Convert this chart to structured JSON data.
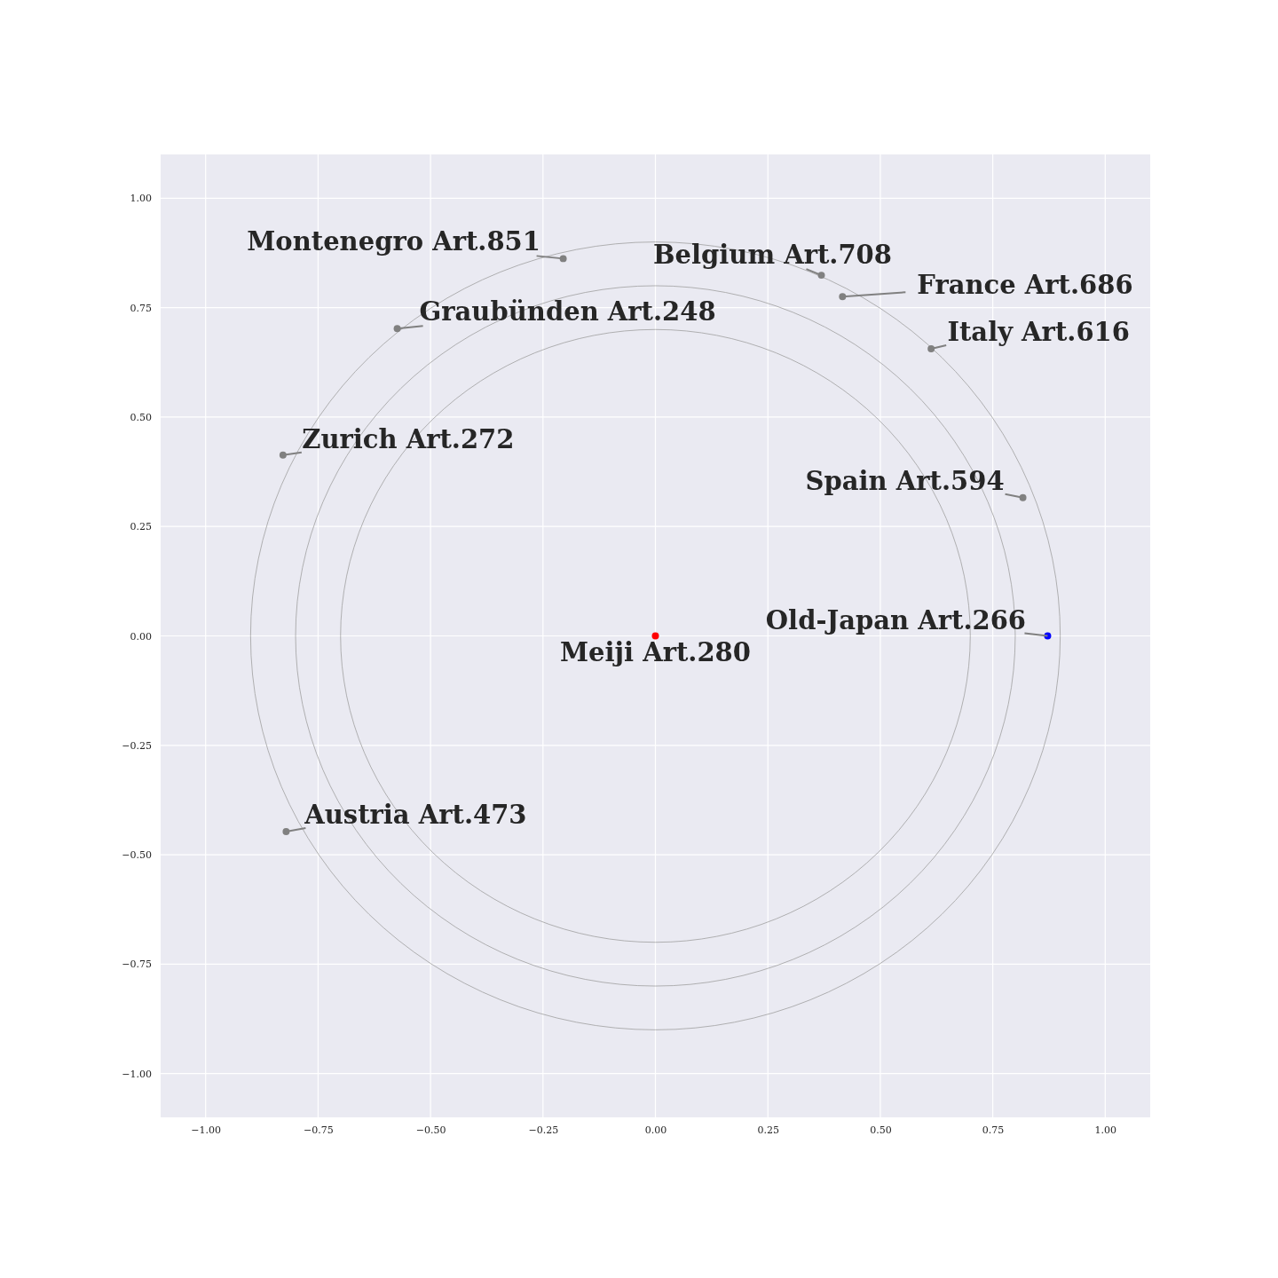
{
  "chart_data": {
    "type": "scatter",
    "xlim": [
      -1.1,
      1.1
    ],
    "ylim": [
      -1.1,
      1.1
    ],
    "xticks": [
      {
        "value": -1,
        "label": "−1.00"
      },
      {
        "value": -0.75,
        "label": "−0.75"
      },
      {
        "value": -0.5,
        "label": "−0.50"
      },
      {
        "value": -0.25,
        "label": "−0.25"
      },
      {
        "value": 0,
        "label": "0.00"
      },
      {
        "value": 0.25,
        "label": "0.25"
      },
      {
        "value": 0.5,
        "label": "0.50"
      },
      {
        "value": 0.75,
        "label": "0.75"
      },
      {
        "value": 1,
        "label": "1.00"
      }
    ],
    "yticks": [
      {
        "value": -1,
        "label": "−1.00"
      },
      {
        "value": -0.75,
        "label": "−0.75"
      },
      {
        "value": -0.5,
        "label": "−0.50"
      },
      {
        "value": -0.25,
        "label": "−0.25"
      },
      {
        "value": 0,
        "label": "0.00"
      },
      {
        "value": 0.25,
        "label": "0.25"
      },
      {
        "value": 0.5,
        "label": "0.50"
      },
      {
        "value": 0.75,
        "label": "0.75"
      },
      {
        "value": 1,
        "label": "1.00"
      }
    ],
    "grid": true,
    "marker": "circle",
    "series": [
      {
        "x": [
          0,
          0.872,
          0.817,
          0.613,
          0.416,
          0.369,
          -0.205,
          -0.574,
          -0.828,
          -0.821
        ],
        "values": [
          0,
          0,
          0.316,
          0.656,
          0.775,
          0.824,
          0.862,
          0.702,
          0.413,
          -0.447
        ],
        "colors": [
          "#ff0000",
          "#0000ff",
          "#808080",
          "#808080",
          "#808080",
          "#808080",
          "#808080",
          "#808080",
          "#808080",
          "#808080"
        ]
      }
    ],
    "annotations": [
      {
        "text": "Meiji Art.280",
        "x": 0,
        "y": 0
      },
      {
        "text": "Old-Japan Art.266",
        "x": 0.872,
        "y": 0
      },
      {
        "text": "Spain Art.594",
        "x": 0.817,
        "y": 0.316
      },
      {
        "text": "Italy Art.616",
        "x": 0.613,
        "y": 0.656
      },
      {
        "text": "France Art.686",
        "x": 0.416,
        "y": 0.775
      },
      {
        "text": "Belgium Art.708",
        "x": 0.369,
        "y": 0.824
      },
      {
        "text": "Montenegro Art.851",
        "x": -0.205,
        "y": 0.862
      },
      {
        "text": "Graubünden Art.248",
        "x": -0.574,
        "y": 0.702
      },
      {
        "text": "Zurich Art.272",
        "x": -0.828,
        "y": 0.413
      },
      {
        "text": "Austria Art.473",
        "x": -0.821,
        "y": -0.447
      }
    ]
  }
}
